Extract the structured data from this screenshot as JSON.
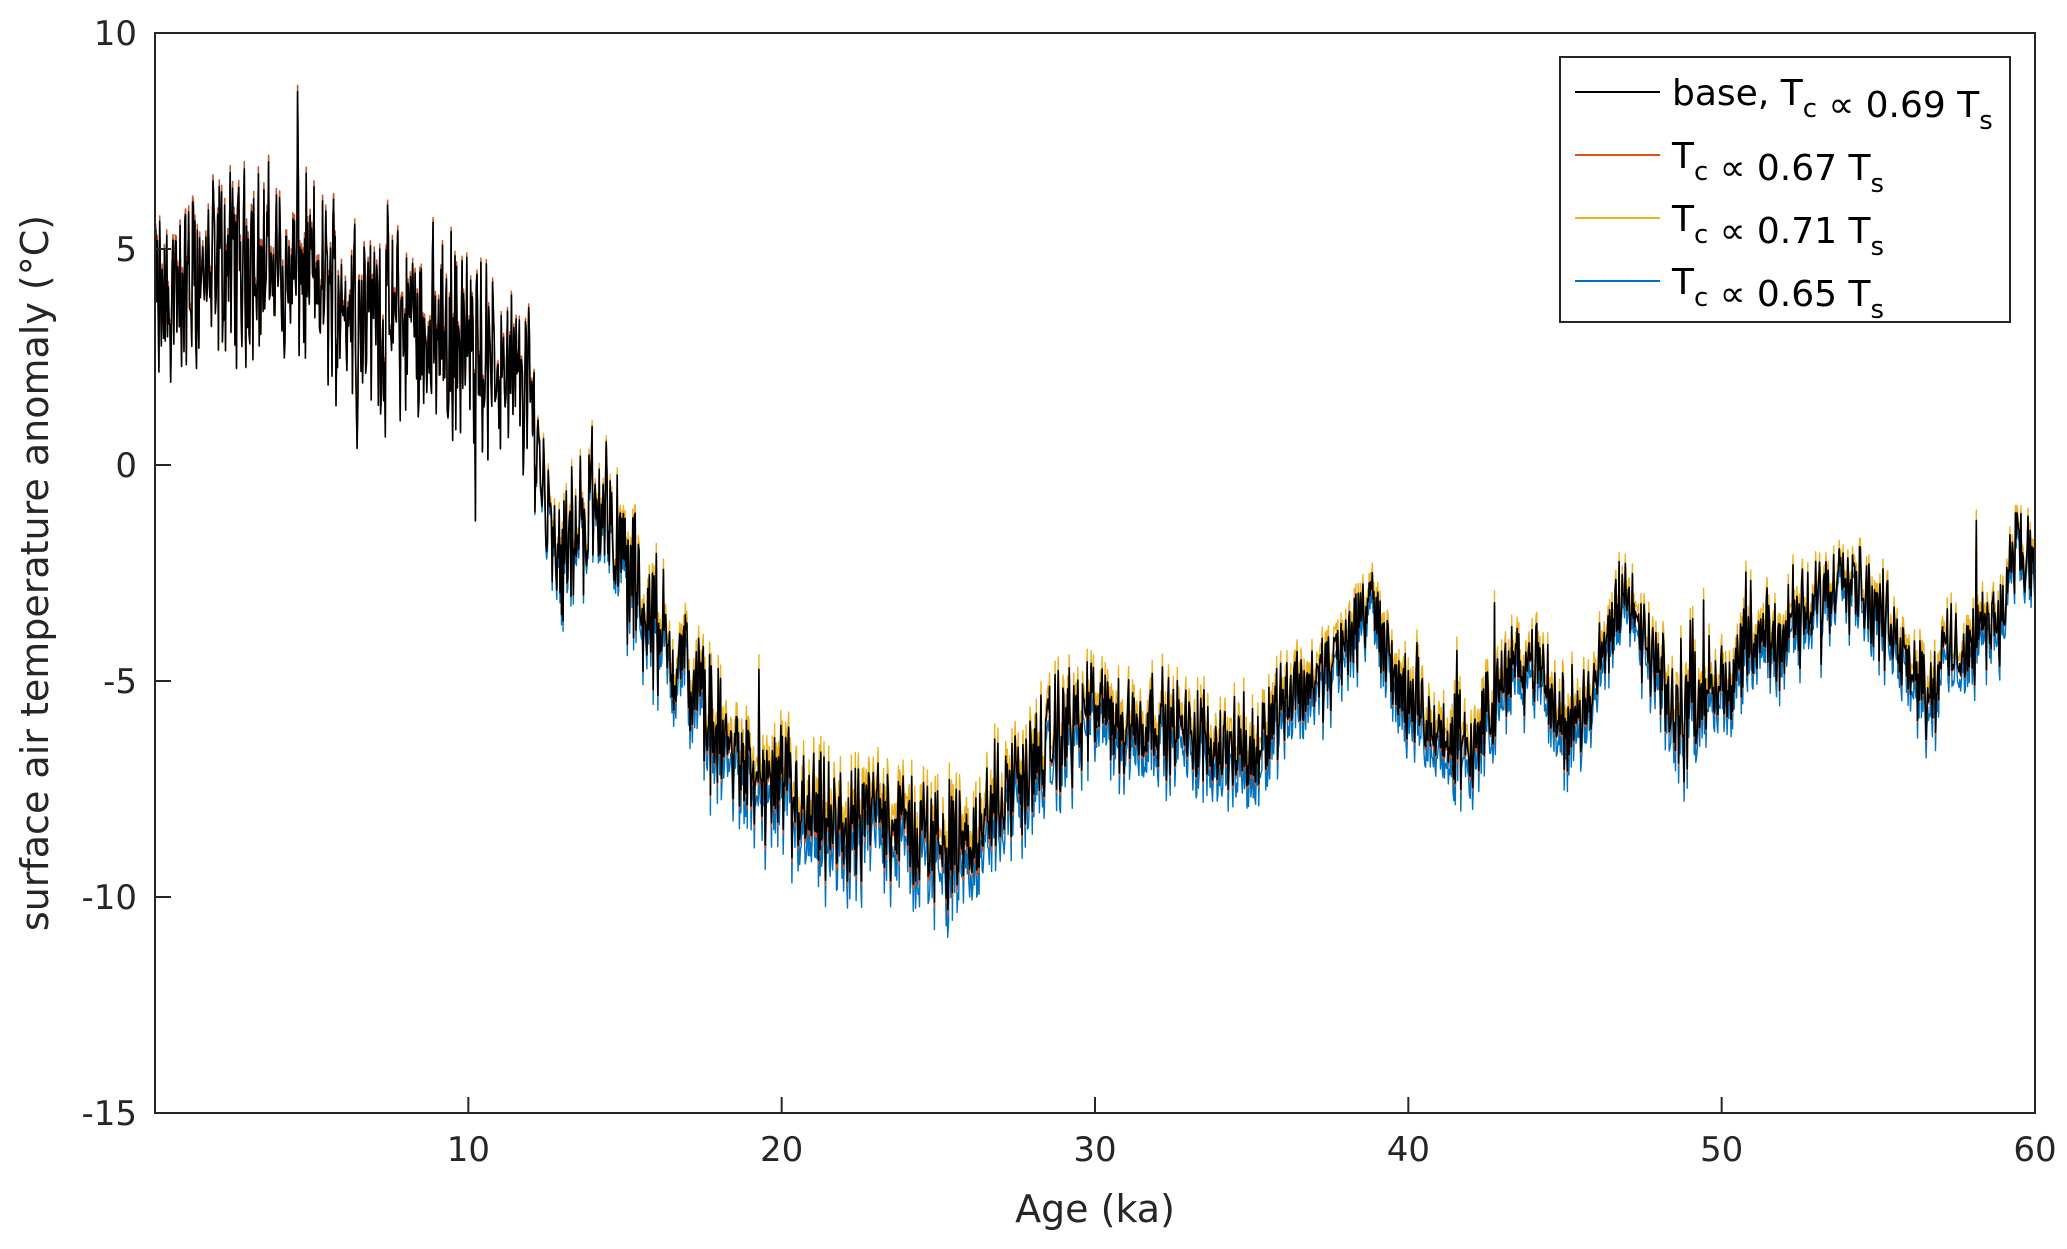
{
  "chart_data": {
    "type": "line",
    "xlabel": "Age (ka)",
    "ylabel": "surface air temperature anomaly (°C)",
    "xlim": [
      0,
      60
    ],
    "ylim": [
      -15,
      10
    ],
    "xticks": [
      "10",
      "20",
      "30",
      "40",
      "50",
      "60"
    ],
    "yticks": [
      "10",
      "5",
      "0",
      "-5",
      "-10",
      "-15"
    ],
    "ytick_values": [
      10,
      5,
      0,
      -5,
      -10,
      -15
    ],
    "xtick_values": [
      10,
      20,
      30,
      40,
      50,
      60
    ],
    "grid": false,
    "legend_position": "top-right",
    "x": [
      0,
      1,
      2,
      3,
      4,
      5,
      6,
      7,
      8,
      9,
      10,
      11,
      12,
      12.5,
      13,
      13.5,
      14,
      14.5,
      15,
      16,
      17,
      18,
      19,
      20,
      21,
      22,
      23,
      24,
      25,
      26,
      27,
      28,
      29,
      30,
      31,
      32,
      33,
      34,
      35,
      36,
      37,
      38,
      38.7,
      39,
      40,
      41,
      42,
      43,
      44,
      45,
      46,
      46.8,
      47,
      48,
      48.5,
      49,
      50,
      51,
      52,
      53,
      54,
      55,
      56,
      56.7,
      57,
      58,
      59,
      59.3,
      60
    ],
    "series": [
      {
        "name": "base, T_c ∝ 0.69 T_s",
        "color": "#000000",
        "values": [
          3.6,
          4.2,
          4.5,
          4.8,
          4.5,
          4.3,
          4.0,
          3.6,
          3.3,
          3.1,
          2.7,
          2.2,
          1.6,
          -1.0,
          -2.0,
          -1.5,
          -0.7,
          -1.1,
          -2.3,
          -3.8,
          -4.8,
          -6.2,
          -7.2,
          -7.6,
          -8.1,
          -8.5,
          -7.9,
          -8.4,
          -8.7,
          -8.8,
          -7.6,
          -6.9,
          -6.1,
          -5.6,
          -6.1,
          -5.8,
          -6.2,
          -6.4,
          -6.8,
          -5.3,
          -5.0,
          -4.2,
          -3.1,
          -3.6,
          -5.6,
          -6.3,
          -6.6,
          -4.9,
          -4.5,
          -6.1,
          -5.0,
          -2.7,
          -3.3,
          -4.8,
          -5.9,
          -5.3,
          -5.0,
          -4.2,
          -3.9,
          -3.3,
          -2.2,
          -3.4,
          -4.4,
          -5.4,
          -4.4,
          -4.1,
          -3.3,
          -1.8,
          -2.6
        ]
      },
      {
        "name": "T_c ∝ 0.67 T_s",
        "color": "#d95319",
        "scale": 1.02
      },
      {
        "name": "T_c ∝ 0.71 T_s",
        "color": "#edb120",
        "scale": 0.97
      },
      {
        "name": "T_c ∝ 0.65 T_s",
        "color": "#0072bd",
        "scale": 1.06
      }
    ],
    "legend": [
      {
        "pre": "base, T",
        "c": "c",
        "mid": " ∝ 0.69 T",
        "s": "s",
        "color": "#000000"
      },
      {
        "pre": "T",
        "c": "c",
        "mid": " ∝ 0.67 T",
        "s": "s",
        "color": "#d95319"
      },
      {
        "pre": "T",
        "c": "c",
        "mid": " ∝ 0.71 T",
        "s": "s",
        "color": "#edb120"
      },
      {
        "pre": "T",
        "c": "c",
        "mid": " ∝ 0.65 T",
        "s": "s",
        "color": "#0072bd"
      }
    ]
  }
}
